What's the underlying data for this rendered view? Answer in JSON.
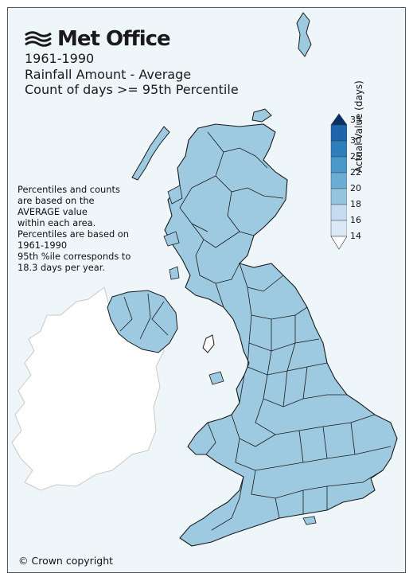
{
  "brand": {
    "name": "Met Office"
  },
  "title": {
    "period": "1961-1990",
    "line2": "Rainfall Amount - Average",
    "line3": "Count of days >= 95th Percentile"
  },
  "notes": [
    "Percentiles and counts",
    "are based on the",
    "AVERAGE value",
    "within each area.",
    "Percentiles are based on",
    "1961-1990",
    "95th %ile corresponds to",
    "18.3 days per year."
  ],
  "legend": {
    "title": "Actual Value (days)",
    "ticks": [
      "35",
      "30",
      "25",
      "22",
      "20",
      "18",
      "16",
      "14"
    ],
    "colors": [
      "#08306b",
      "#1f65ad",
      "#2e7ebc",
      "#4a98c9",
      "#6aaed6",
      "#94c4df",
      "#c6dbef",
      "#dbe9f6",
      "#ffffff"
    ]
  },
  "map": {
    "region_fill": "#9ecae1",
    "region_stroke": "#1a1a1a",
    "ireland_fill": "#ffffff",
    "sea_color": "#eef6fa"
  },
  "copyright": "© Crown copyright"
}
